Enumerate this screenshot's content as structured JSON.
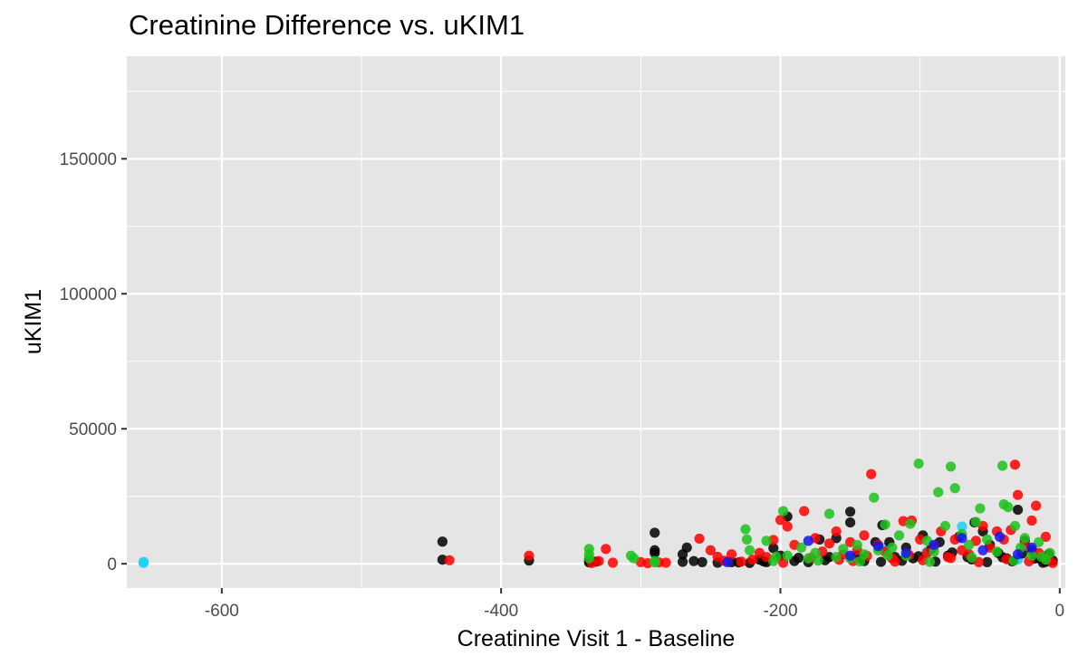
{
  "chart_data": {
    "type": "scatter",
    "title": "Creatinine Difference vs. uKIM1",
    "xlabel": "Creatinine Visit 1 - Baseline",
    "ylabel": "uKIM1",
    "xlim": [
      -668,
      4
    ],
    "ylim": [
      -9000,
      188000
    ],
    "x_ticks": [
      -600,
      -400,
      -200,
      0
    ],
    "x_tick_labels": [
      "-600",
      "-400",
      "-200",
      "0"
    ],
    "y_ticks": [
      0,
      50000,
      100000,
      150000
    ],
    "y_tick_labels": [
      "0",
      "50000",
      "100000",
      "150000"
    ],
    "grid": true,
    "legend": "none",
    "colors": {
      "panel_background": "#e5e5e5",
      "grid": "#ffffff",
      "cyan": "#1fd0f5",
      "black": "#000000",
      "red": "#ff0000",
      "green": "#1cc21c",
      "blue": "#1515f0"
    },
    "series": [
      {
        "color": "#1fd0f5",
        "points": [
          [
            -656,
            700
          ],
          [
            -656,
            300
          ],
          [
            -70,
            13800
          ],
          [
            -150,
            2500
          ],
          [
            -95,
            4500
          ],
          [
            -30,
            1500
          ],
          [
            -125,
            6000
          ]
        ]
      },
      {
        "color": "#000000",
        "points": [
          [
            -442,
            8200
          ],
          [
            -442,
            1500
          ],
          [
            -380,
            1200
          ],
          [
            -337,
            500
          ],
          [
            -337,
            1200
          ],
          [
            -332,
            800
          ],
          [
            -290,
            11500
          ],
          [
            -290,
            5000
          ],
          [
            -290,
            4000
          ],
          [
            -267,
            6000
          ],
          [
            -270,
            3500
          ],
          [
            -270,
            700
          ],
          [
            -262,
            1000
          ],
          [
            -256,
            600
          ],
          [
            -245,
            400
          ],
          [
            -235,
            600
          ],
          [
            -230,
            500
          ],
          [
            -222,
            300
          ],
          [
            -215,
            1500
          ],
          [
            -210,
            600
          ],
          [
            -205,
            5800
          ],
          [
            -200,
            3000
          ],
          [
            -195,
            17500
          ],
          [
            -190,
            1000
          ],
          [
            -180,
            600
          ],
          [
            -172,
            9000
          ],
          [
            -165,
            2500
          ],
          [
            -160,
            9500
          ],
          [
            -150,
            19300
          ],
          [
            -150,
            15300
          ],
          [
            -145,
            3000
          ],
          [
            -140,
            1000
          ],
          [
            -132,
            8000
          ],
          [
            -127,
            14300
          ],
          [
            -122,
            8000
          ],
          [
            -118,
            2500
          ],
          [
            -110,
            6000
          ],
          [
            -105,
            2000
          ],
          [
            -98,
            10500
          ],
          [
            -92,
            5500
          ],
          [
            -86,
            8000
          ],
          [
            -80,
            3000
          ],
          [
            -72,
            10000
          ],
          [
            -66,
            2500
          ],
          [
            -61,
            15300
          ],
          [
            -55,
            12000
          ],
          [
            -50,
            7000
          ],
          [
            -44,
            4000
          ],
          [
            -38,
            2000
          ],
          [
            -30,
            20000
          ],
          [
            -25,
            8500
          ],
          [
            -20,
            5000
          ],
          [
            -15,
            2000
          ],
          [
            -10,
            700
          ],
          [
            -8,
            3500
          ],
          [
            -5,
            1200
          ],
          [
            -212,
            900
          ],
          [
            -187,
            2200
          ],
          [
            -168,
            1300
          ],
          [
            -142,
            1800
          ],
          [
            -128,
            700
          ],
          [
            -113,
            1100
          ],
          [
            -101,
            2800
          ],
          [
            -89,
            800
          ],
          [
            -77,
            4200
          ],
          [
            -63,
            1600
          ],
          [
            -52,
            600
          ],
          [
            -41,
            2400
          ],
          [
            -34,
            900
          ],
          [
            -27,
            3800
          ],
          [
            -18,
            1900
          ],
          [
            -12,
            400
          ]
        ]
      },
      {
        "color": "#ff0000",
        "points": [
          [
            -437,
            1300
          ],
          [
            -380,
            3000
          ],
          [
            -325,
            5500
          ],
          [
            -330,
            1000
          ],
          [
            -335,
            300
          ],
          [
            -320,
            400
          ],
          [
            -300,
            600
          ],
          [
            -295,
            200
          ],
          [
            -287,
            500
          ],
          [
            -282,
            400
          ],
          [
            -258,
            9300
          ],
          [
            -250,
            5000
          ],
          [
            -245,
            2600
          ],
          [
            -240,
            1100
          ],
          [
            -235,
            3500
          ],
          [
            -228,
            800
          ],
          [
            -220,
            1500
          ],
          [
            -215,
            4000
          ],
          [
            -210,
            2500
          ],
          [
            -205,
            8800
          ],
          [
            -200,
            16200
          ],
          [
            -195,
            13800
          ],
          [
            -190,
            7000
          ],
          [
            -183,
            19500
          ],
          [
            -175,
            9500
          ],
          [
            -170,
            4500
          ],
          [
            -165,
            7500
          ],
          [
            -160,
            12000
          ],
          [
            -155,
            3500
          ],
          [
            -150,
            8000
          ],
          [
            -145,
            5000
          ],
          [
            -140,
            10500
          ],
          [
            -135,
            33200
          ],
          [
            -130,
            7000
          ],
          [
            -125,
            4500
          ],
          [
            -120,
            2000
          ],
          [
            -112,
            15800
          ],
          [
            -106,
            16000
          ],
          [
            -100,
            9000
          ],
          [
            -95,
            4000
          ],
          [
            -90,
            6500
          ],
          [
            -85,
            12000
          ],
          [
            -80,
            2500
          ],
          [
            -75,
            9000
          ],
          [
            -70,
            5000
          ],
          [
            -65,
            3500
          ],
          [
            -60,
            8500
          ],
          [
            -55,
            14000
          ],
          [
            -50,
            6000
          ],
          [
            -45,
            12000
          ],
          [
            -40,
            9000
          ],
          [
            -35,
            12500
          ],
          [
            -32,
            36700
          ],
          [
            -30,
            25500
          ],
          [
            -25,
            7000
          ],
          [
            -20,
            16000
          ],
          [
            -17,
            21500
          ],
          [
            -15,
            4000
          ],
          [
            -10,
            10000
          ],
          [
            -8,
            1500
          ],
          [
            -5,
            300
          ],
          [
            -198,
            400
          ],
          [
            -178,
            2200
          ],
          [
            -158,
            1500
          ],
          [
            -138,
            2900
          ],
          [
            -118,
            800
          ],
          [
            -98,
            1300
          ],
          [
            -78,
            2100
          ],
          [
            -58,
            600
          ],
          [
            -38,
            1700
          ],
          [
            -22,
            900
          ],
          [
            -148,
            1000
          ],
          [
            -108,
            3300
          ]
        ]
      },
      {
        "color": "#1cc21c",
        "points": [
          [
            -337,
            5500
          ],
          [
            -337,
            3500
          ],
          [
            -337,
            2000
          ],
          [
            -307,
            3000
          ],
          [
            -305,
            2000
          ],
          [
            -290,
            1000
          ],
          [
            -290,
            500
          ],
          [
            -225,
            12800
          ],
          [
            -224,
            9000
          ],
          [
            -222,
            5000
          ],
          [
            -210,
            8500
          ],
          [
            -205,
            1000
          ],
          [
            -198,
            19500
          ],
          [
            -195,
            3000
          ],
          [
            -185,
            6000
          ],
          [
            -180,
            2000
          ],
          [
            -175,
            4000
          ],
          [
            -165,
            18500
          ],
          [
            -160,
            2500
          ],
          [
            -155,
            5500
          ],
          [
            -150,
            2000
          ],
          [
            -145,
            7000
          ],
          [
            -140,
            3500
          ],
          [
            -133,
            24500
          ],
          [
            -130,
            5000
          ],
          [
            -125,
            14500
          ],
          [
            -120,
            6000
          ],
          [
            -115,
            10500
          ],
          [
            -110,
            3000
          ],
          [
            -107,
            14800
          ],
          [
            -101,
            37100
          ],
          [
            -95,
            8500
          ],
          [
            -90,
            4500
          ],
          [
            -87,
            26500
          ],
          [
            -82,
            14000
          ],
          [
            -78,
            36000
          ],
          [
            -75,
            28000
          ],
          [
            -70,
            11000
          ],
          [
            -65,
            7000
          ],
          [
            -60,
            15500
          ],
          [
            -57,
            20500
          ],
          [
            -52,
            9000
          ],
          [
            -45,
            4500
          ],
          [
            -41,
            36300
          ],
          [
            -40,
            22000
          ],
          [
            -37,
            21000
          ],
          [
            -32,
            14000
          ],
          [
            -28,
            6000
          ],
          [
            -25,
            9500
          ],
          [
            -20,
            3000
          ],
          [
            -15,
            8000
          ],
          [
            -10,
            1500
          ],
          [
            -7,
            4000
          ],
          [
            -203,
            2600
          ],
          [
            -173,
            1200
          ],
          [
            -143,
            900
          ],
          [
            -123,
            3100
          ],
          [
            -93,
            700
          ],
          [
            -63,
            2300
          ],
          [
            -33,
            1100
          ],
          [
            -13,
            2600
          ]
        ]
      },
      {
        "color": "#1515f0",
        "points": [
          [
            -238,
            600
          ],
          [
            -180,
            8500
          ],
          [
            -150,
            3000
          ],
          [
            -130,
            6500
          ],
          [
            -110,
            4000
          ],
          [
            -90,
            7000
          ],
          [
            -70,
            9500
          ],
          [
            -55,
            5000
          ],
          [
            -43,
            10000
          ],
          [
            -30,
            3500
          ],
          [
            -20,
            6000
          ]
        ]
      }
    ]
  }
}
